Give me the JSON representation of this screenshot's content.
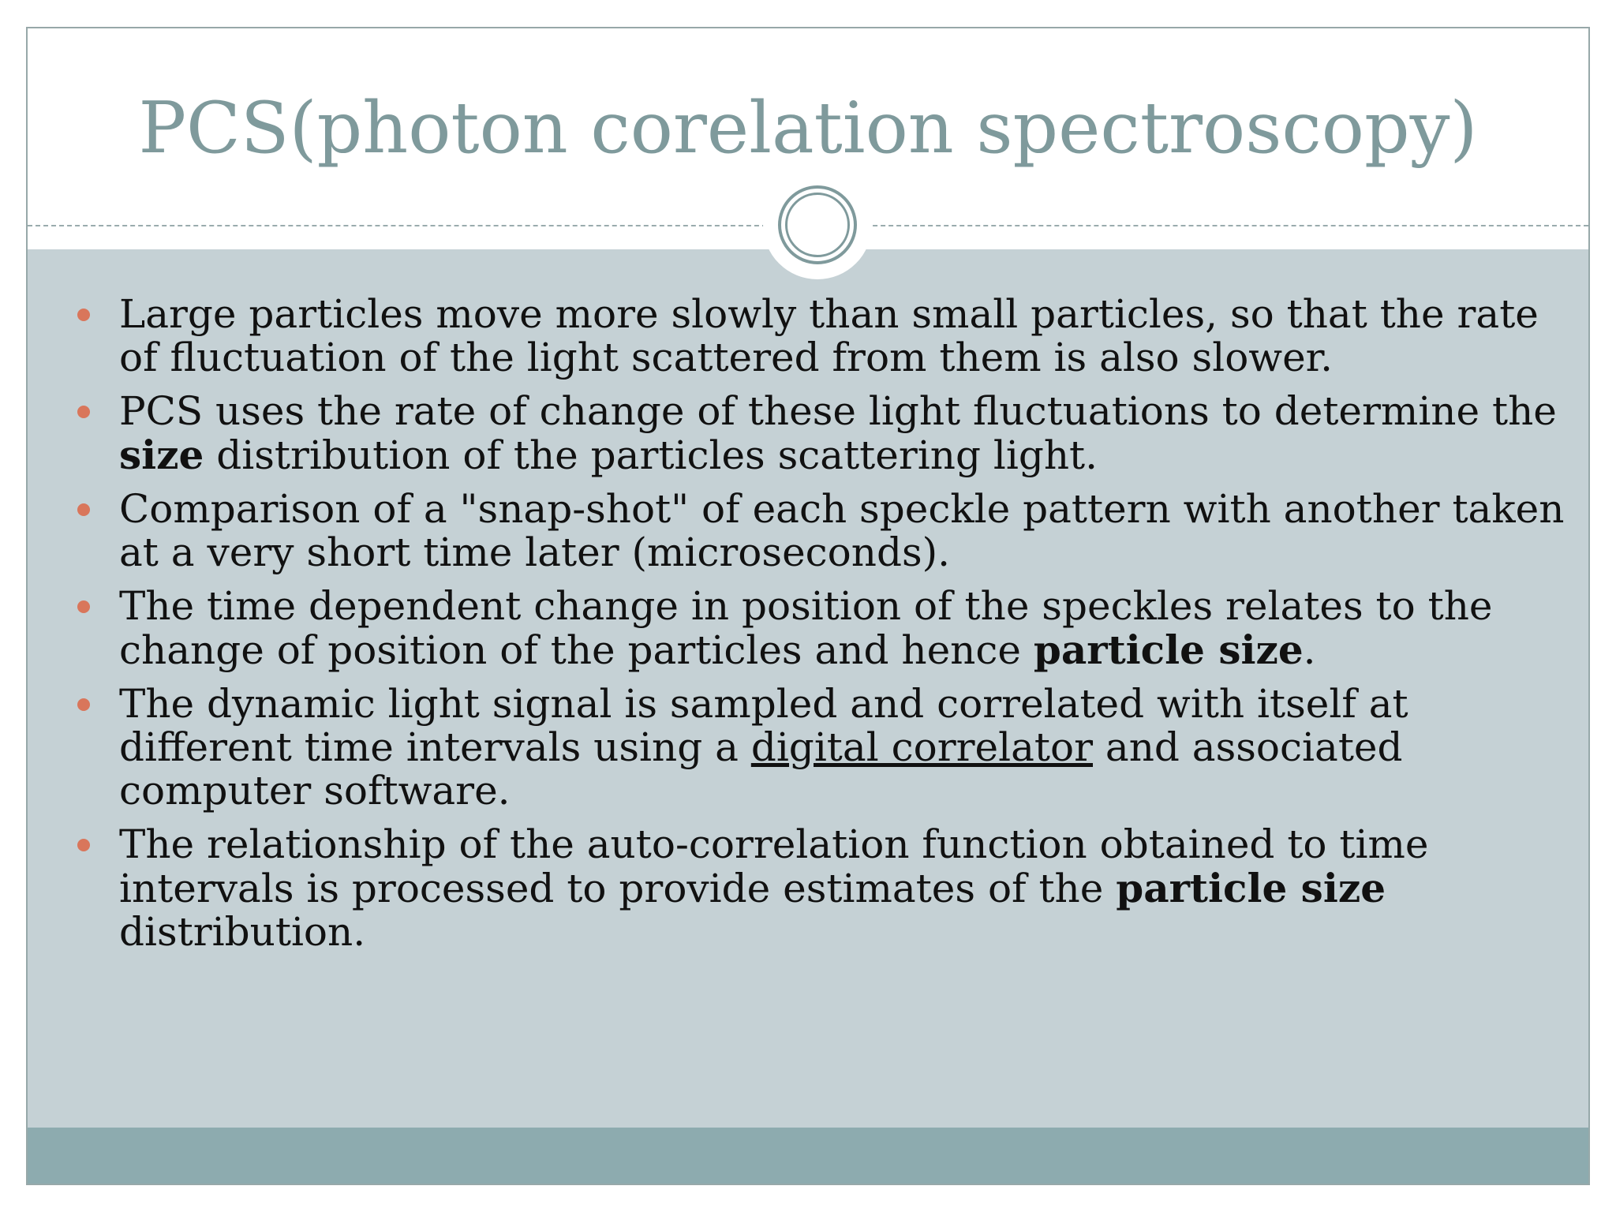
{
  "slide": {
    "title": "PCS(photon corelation spectroscopy)",
    "accent_color": "#d9765b",
    "title_color": "#7f9a9c",
    "content_background": "#c5d1d5",
    "footer_color": "#8dabaf",
    "ornament_icon": "double-circle-icon",
    "bullet_icon": "bullet-dot-icon"
  },
  "bullets": [
    {
      "line1": "Large particles  move more slowly than small particles,  so that the rate",
      "line2": "of fluctuation of  the light scattered from them is also  slower."
    },
    {
      "line1": "PCS uses the rate of change of these light fluctuations to determine the",
      "line2_bold": "size",
      "line2_rest": " distribution of the particles scattering light."
    },
    {
      "line1": "Comparison of a \"snap-shot\" of each speckle pattern with another taken",
      "line2": "at a very short time later (microseconds)."
    },
    {
      "line1": "The time dependent change in position of the speckles relates to the",
      "line2_start": "change of position of the particles and hence ",
      "line2_bold": "particle size",
      "line2_end": "."
    },
    {
      "line1": "The dynamic light signal is sampled and correlated with itself at",
      "line2_start": "different time intervals using a ",
      "line2_link": "digital correlator",
      "line2_end": " and associated",
      "line3": "computer software."
    },
    {
      "line1": "The relationship of the auto-correlation function obtained to time",
      "line2_start": "intervals is processed to provide estimates of the ",
      "line2_bold": "particle size",
      "line3": "distribution."
    }
  ]
}
